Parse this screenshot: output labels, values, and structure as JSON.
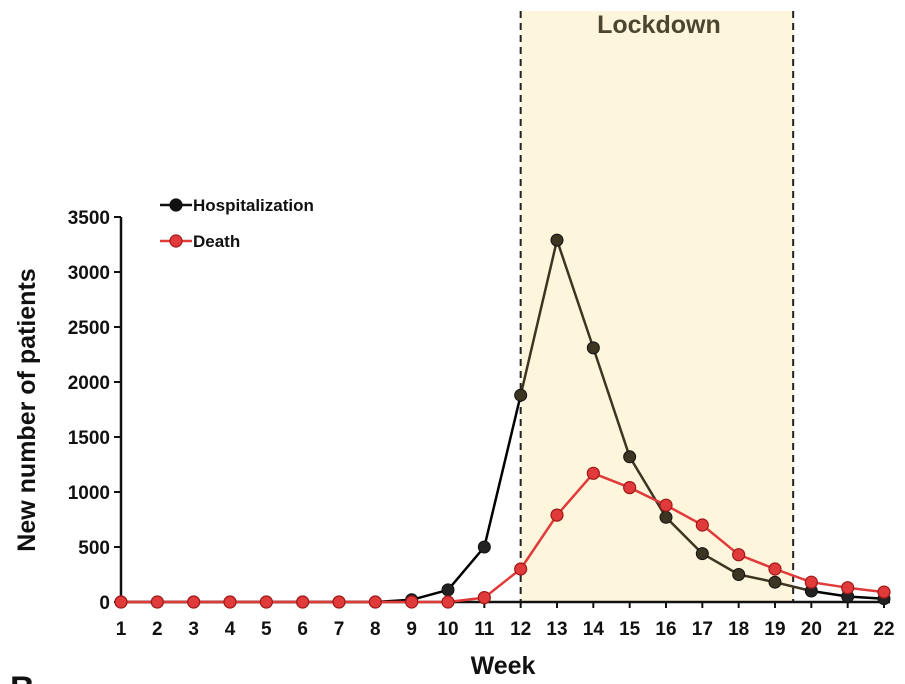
{
  "panel_letter": "B",
  "chart_data": {
    "type": "line",
    "title": "",
    "xlabel": "Week",
    "ylabel": "New number of patients",
    "x": [
      1,
      2,
      3,
      4,
      5,
      6,
      7,
      8,
      9,
      10,
      11,
      12,
      13,
      14,
      15,
      16,
      17,
      18,
      19,
      20,
      21,
      22
    ],
    "xlim": [
      1,
      22
    ],
    "ylim": [
      0,
      3500
    ],
    "yticks": [
      0,
      500,
      1000,
      1500,
      2000,
      2500,
      3000,
      3500
    ],
    "grid": false,
    "legend_position": "top-left",
    "series": [
      {
        "name": "Hospitalization",
        "color": "#000000",
        "color_in_lockdown": "#3b3522",
        "values": [
          0,
          0,
          0,
          0,
          0,
          0,
          0,
          0,
          20,
          110,
          500,
          1880,
          3290,
          2310,
          1320,
          770,
          440,
          250,
          180,
          100,
          50,
          30
        ]
      },
      {
        "name": "Death",
        "color": "#e03a3a",
        "marker_fill": "#e03a3a",
        "marker_stroke": "#a01818",
        "values": [
          0,
          0,
          0,
          0,
          0,
          0,
          0,
          0,
          0,
          0,
          40,
          300,
          790,
          1170,
          1040,
          880,
          700,
          430,
          300,
          180,
          130,
          90
        ]
      }
    ],
    "annotations": [
      {
        "type": "shaded-region",
        "label": "Lockdown",
        "x_start": 12,
        "x_end": 19.5,
        "fill": "#fdf5dc",
        "label_color": "#4a4630"
      }
    ]
  }
}
